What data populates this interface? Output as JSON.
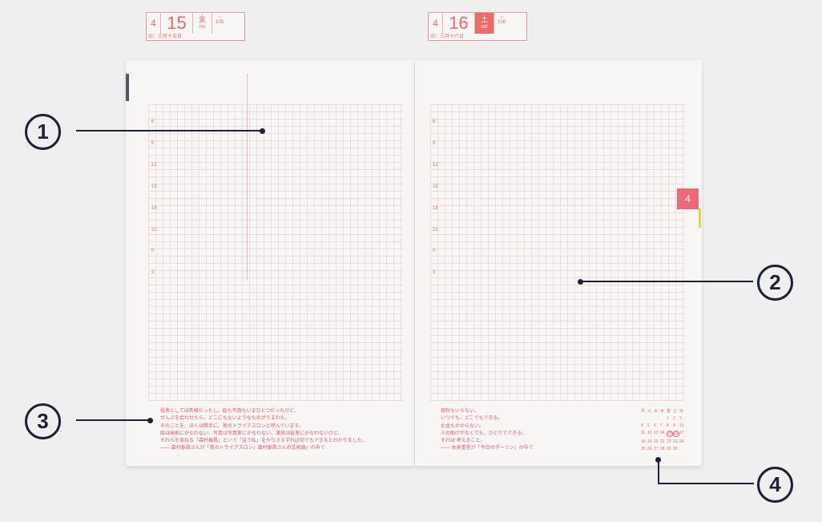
{
  "left_page": {
    "month": "4",
    "day": "15",
    "weekday_jp": "金",
    "weekday_en": "FRI",
    "day_of_year": "105",
    "lunar": "旧：三月十五日",
    "times": [
      "6",
      "9",
      "12",
      "15",
      "18",
      "21",
      "0",
      "3"
    ],
    "quote": [
      "役者としては失格だったし、絵も写真もいまひとつだったけど、",
      "ぜんぶを合わせたら、どこにもないようなものがうまれた。",
      "そのことを、ぼくは勝手に、美のトライアスロンと呼んでいます。",
      "絵は画家にかなわない、写真は写真家にかなわない、演技は役者にかなわないけど、",
      "それらを束ねる「森村泰昌」という「這う私」をやりさえすれば何でもできるとわかりました。",
      "―― 森村泰昌さんが「美のトライアスロン」森村泰昌さんの芸術論」の中で"
    ]
  },
  "right_page": {
    "month": "4",
    "day": "16",
    "weekday_jp": "土",
    "weekday_en": "SAT",
    "day_of_year": "106",
    "lunar": "旧：三月十六日",
    "times": [
      "6",
      "9",
      "12",
      "15",
      "18",
      "21",
      "0",
      "3"
    ],
    "quote": [
      "原料もいらない。",
      "いつでも、どこでもできる。",
      "お金もかからない。",
      "人の助けがなくても、ひとりでできる。",
      "それは 考えること。",
      "―― 糸井重里が「今日のダーリン」の中で"
    ],
    "calendar": {
      "headers": [
        "月",
        "火",
        "水",
        "木",
        "金",
        "土",
        "日"
      ],
      "days": [
        "",
        "",
        "",
        "",
        "1",
        "2",
        "3",
        "4",
        "5",
        "6",
        "7",
        "8",
        "9",
        "10",
        "11",
        "12",
        "13",
        "14",
        "15",
        "16",
        "17",
        "18",
        "19",
        "20",
        "21",
        "22",
        "23",
        "24",
        "25",
        "26",
        "27",
        "28",
        "29",
        "30"
      ],
      "highlighted": [
        "15",
        "16"
      ]
    }
  },
  "month_tab": "4",
  "callouts": [
    "1",
    "2",
    "3",
    "4"
  ],
  "colors": {
    "accent": "#ec6a6a",
    "callout": "#1e2035"
  }
}
